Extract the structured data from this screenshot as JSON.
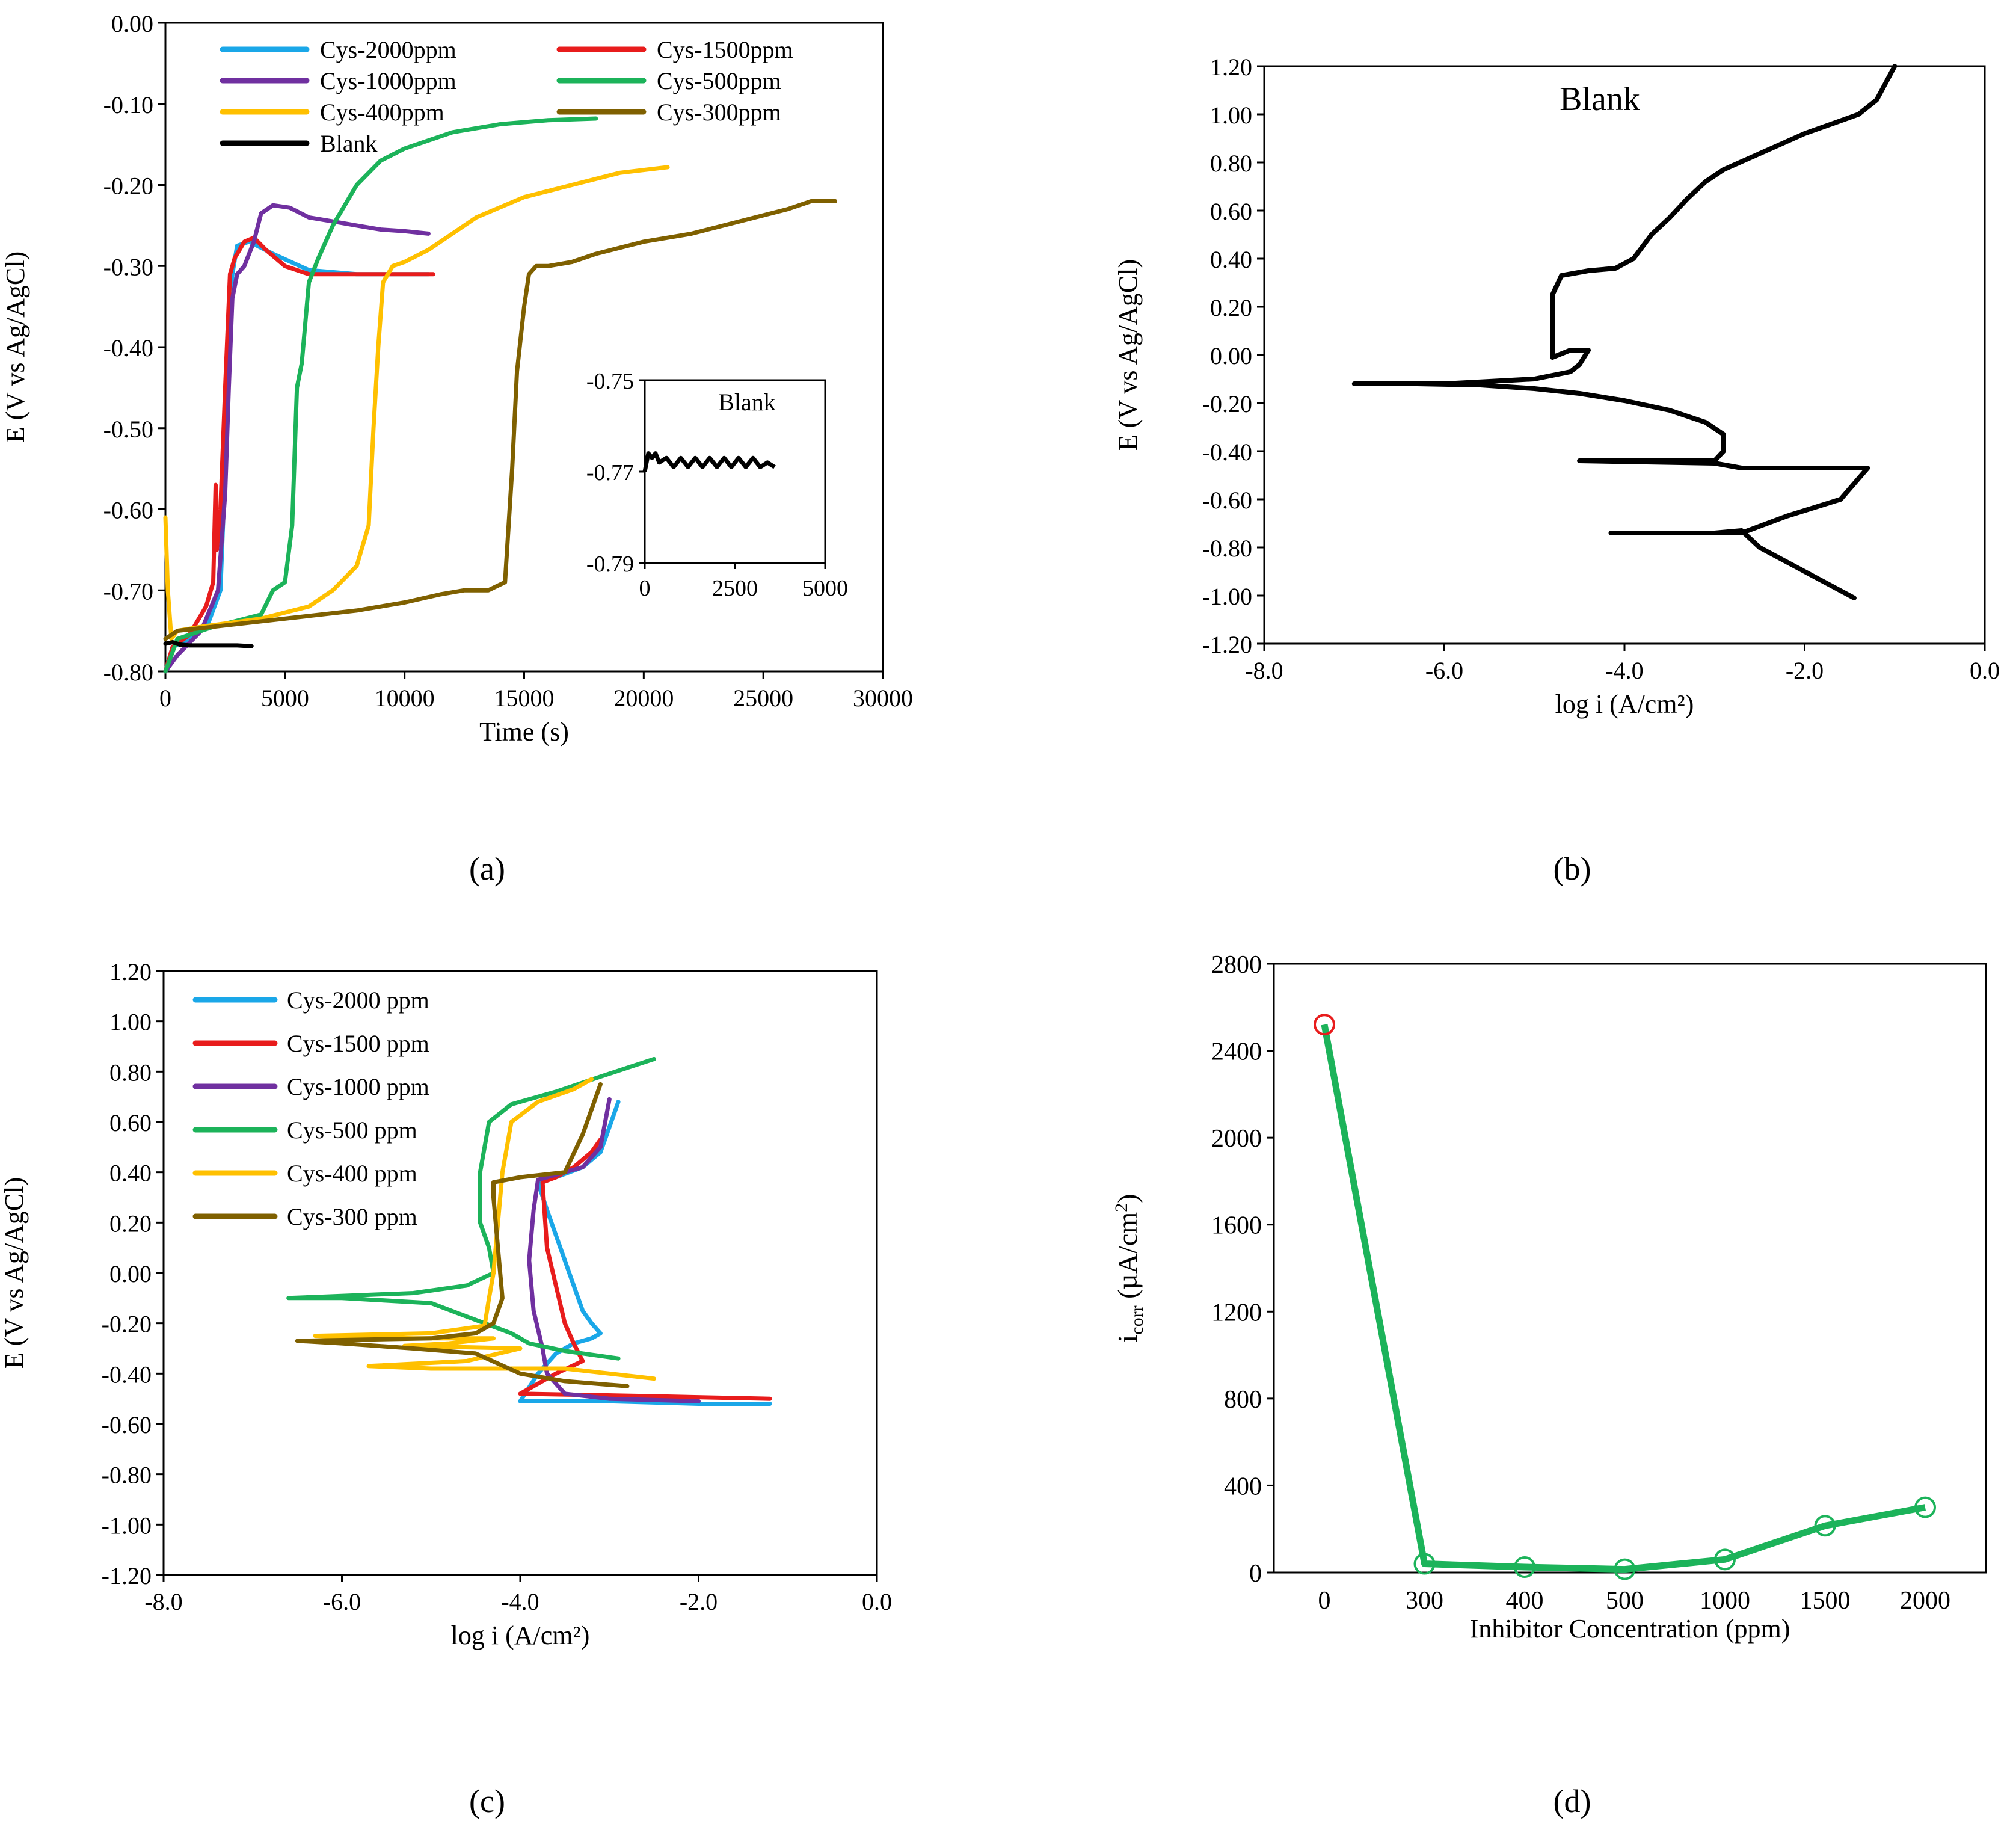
{
  "figure": {
    "panel_labels": [
      "(a)",
      "(b)",
      "(c)",
      "(d)"
    ]
  },
  "chart_data": [
    {
      "id": "a",
      "type": "line",
      "title": "",
      "xlabel": "Time (s)",
      "ylabel": "E (V vs Ag/AgCl)",
      "xlim": [
        0,
        30000
      ],
      "ylim": [
        -0.8,
        0.0
      ],
      "xticks": [
        0,
        5000,
        10000,
        15000,
        20000,
        25000,
        30000
      ],
      "yticks": [
        0.0,
        -0.1,
        -0.2,
        -0.3,
        -0.4,
        -0.5,
        -0.6,
        -0.7,
        -0.8
      ],
      "xtick_labels": [
        "0",
        "5000",
        "10000",
        "15000",
        "20000",
        "25000",
        "30000"
      ],
      "ytick_labels": [
        "0.00",
        "-0.10",
        "-0.20",
        "-0.30",
        "-0.40",
        "-0.50",
        "-0.60",
        "-0.70",
        "-0.80"
      ],
      "legend": "top, two columns",
      "series": [
        {
          "name": "Cys-2000ppm",
          "color": "#1aa7e8",
          "x": [
            0,
            300,
            1000,
            1800,
            2300,
            2500,
            2650,
            2800,
            3000,
            3500,
            4500,
            6000,
            8000,
            10000,
            11000
          ],
          "y": [
            -0.8,
            -0.77,
            -0.76,
            -0.74,
            -0.7,
            -0.55,
            -0.42,
            -0.31,
            -0.275,
            -0.27,
            -0.285,
            -0.305,
            -0.31,
            -0.31,
            -0.31
          ]
        },
        {
          "name": "Cys-1500ppm",
          "color": "#e81c1c",
          "x": [
            0,
            300,
            1000,
            1700,
            2000,
            2100,
            2150,
            2300,
            2500,
            2700,
            2900,
            3300,
            3700,
            4200,
            5000,
            6000,
            8000,
            11200
          ],
          "y": [
            -0.8,
            -0.77,
            -0.755,
            -0.72,
            -0.69,
            -0.57,
            -0.65,
            -0.6,
            -0.45,
            -0.31,
            -0.29,
            -0.27,
            -0.265,
            -0.28,
            -0.3,
            -0.31,
            -0.31,
            -0.31
          ]
        },
        {
          "name": "Cys-1000ppm",
          "color": "#7030a0",
          "x": [
            0,
            500,
            1500,
            2200,
            2500,
            2650,
            2800,
            3000,
            3300,
            3700,
            4000,
            4500,
            5200,
            6000,
            7000,
            8000,
            9000,
            10000,
            11000
          ],
          "y": [
            -0.8,
            -0.78,
            -0.75,
            -0.7,
            -0.58,
            -0.45,
            -0.34,
            -0.31,
            -0.3,
            -0.27,
            -0.235,
            -0.225,
            -0.228,
            -0.24,
            -0.245,
            -0.25,
            -0.255,
            -0.257,
            -0.26
          ]
        },
        {
          "name": "Cys-500ppm",
          "color": "#1cb35a",
          "x": [
            0,
            500,
            2000,
            4000,
            4500,
            5000,
            5300,
            5500,
            5700,
            6000,
            6400,
            7000,
            8000,
            9000,
            10000,
            12000,
            14000,
            16000,
            18000
          ],
          "y": [
            -0.8,
            -0.76,
            -0.745,
            -0.73,
            -0.7,
            -0.69,
            -0.62,
            -0.45,
            -0.42,
            -0.32,
            -0.29,
            -0.25,
            -0.2,
            -0.17,
            -0.155,
            -0.135,
            -0.125,
            -0.12,
            -0.118
          ]
        },
        {
          "name": "Cys-400ppm",
          "color": "#ffc000",
          "x": [
            0,
            100,
            250,
            500,
            1500,
            4000,
            6000,
            7000,
            8000,
            8500,
            8700,
            8900,
            9100,
            9500,
            10000,
            11000,
            12000,
            13000,
            15000,
            17000,
            19000,
            21000
          ],
          "y": [
            -0.61,
            -0.7,
            -0.76,
            -0.75,
            -0.745,
            -0.735,
            -0.72,
            -0.7,
            -0.67,
            -0.62,
            -0.5,
            -0.4,
            -0.32,
            -0.3,
            -0.295,
            -0.28,
            -0.26,
            -0.24,
            -0.215,
            -0.2,
            -0.185,
            -0.178
          ]
        },
        {
          "name": "Cys-300ppm",
          "color": "#7f6000",
          "x": [
            0,
            500,
            2000,
            5000,
            8000,
            10000,
            11500,
            12500,
            13500,
            14200,
            14500,
            14700,
            15000,
            15200,
            15500,
            16000,
            17000,
            18000,
            20000,
            22000,
            24000,
            26000,
            27000,
            28000
          ],
          "y": [
            -0.76,
            -0.75,
            -0.745,
            -0.735,
            -0.725,
            -0.715,
            -0.705,
            -0.7,
            -0.7,
            -0.69,
            -0.55,
            -0.43,
            -0.35,
            -0.31,
            -0.3,
            -0.3,
            -0.295,
            -0.285,
            -0.27,
            -0.26,
            -0.245,
            -0.23,
            -0.22,
            -0.22
          ]
        },
        {
          "name": "Blank",
          "color": "#000000",
          "x": [
            0,
            300,
            600,
            1000,
            1500,
            2000,
            2500,
            3000,
            3600
          ],
          "y": [
            -0.766,
            -0.764,
            -0.767,
            -0.768,
            -0.768,
            -0.768,
            -0.768,
            -0.768,
            -0.769
          ]
        }
      ],
      "inset": {
        "title": "Blank",
        "xlim": [
          0,
          5000
        ],
        "ylim": [
          -0.79,
          -0.75
        ],
        "xticks": [
          0,
          2500,
          5000
        ],
        "yticks": [
          -0.75,
          -0.77,
          -0.79
        ],
        "xtick_labels": [
          "0",
          "2500",
          "5000"
        ],
        "ytick_labels": [
          "-0.75",
          "-0.77",
          "-0.79"
        ],
        "x": [
          0,
          100,
          200,
          300,
          400,
          600,
          800,
          1000,
          1200,
          1400,
          1600,
          1800,
          2000,
          2200,
          2400,
          2600,
          2800,
          3000,
          3200,
          3400,
          3600
        ],
        "y": [
          -0.77,
          -0.766,
          -0.767,
          -0.766,
          -0.768,
          -0.767,
          -0.769,
          -0.767,
          -0.769,
          -0.767,
          -0.769,
          -0.767,
          -0.769,
          -0.767,
          -0.769,
          -0.767,
          -0.769,
          -0.767,
          -0.769,
          -0.768,
          -0.769
        ]
      }
    },
    {
      "id": "b",
      "type": "line",
      "title": "Blank",
      "xlabel": "log i (A/cm²)",
      "ylabel": "E (V vs Ag/AgCl)",
      "xlim": [
        -8.0,
        0.0
      ],
      "ylim": [
        -1.2,
        1.2
      ],
      "xticks": [
        -8.0,
        -6.0,
        -4.0,
        -2.0,
        0.0
      ],
      "yticks": [
        1.2,
        1.0,
        0.8,
        0.6,
        0.4,
        0.2,
        0.0,
        -0.2,
        -0.4,
        -0.6,
        -0.8,
        -1.0,
        -1.2
      ],
      "xtick_labels": [
        "-8.0",
        "-6.0",
        "-4.0",
        "-2.0",
        "0.0"
      ],
      "ytick_labels": [
        "1.20",
        "1.00",
        "0.80",
        "0.60",
        "0.40",
        "0.20",
        "0.00",
        "-0.20",
        "-0.40",
        "-0.60",
        "-0.80",
        "-1.00",
        "-1.20"
      ],
      "series": [
        {
          "name": "Blank",
          "color": "#000000",
          "x": [
            -1.45,
            -2.0,
            -2.5,
            -2.7,
            -3.0,
            -3.5,
            -4.15,
            -3.5,
            -2.7,
            -2.2,
            -1.6,
            -1.3,
            -1.4,
            -2.0,
            -2.7,
            -3.0,
            -4.5,
            -3.0,
            -2.9,
            -2.9,
            -3.1,
            -3.5,
            -4.0,
            -4.5,
            -5.0,
            -5.6,
            -6.3,
            -7.0,
            -6.0,
            -5.5,
            -5.0,
            -4.6,
            -4.5,
            -4.4,
            -4.6,
            -4.8,
            -4.8,
            -4.8,
            -4.7,
            -4.4,
            -4.1,
            -3.9,
            -3.7,
            -3.5,
            -3.3,
            -3.1,
            -2.9,
            -2.6,
            -2.3,
            -2.0,
            -1.7,
            -1.4,
            -1.2,
            -1.1,
            -1.0
          ],
          "y": [
            -1.01,
            -0.9,
            -0.8,
            -0.73,
            -0.74,
            -0.74,
            -0.74,
            -0.74,
            -0.74,
            -0.67,
            -0.6,
            -0.47,
            -0.47,
            -0.47,
            -0.47,
            -0.45,
            -0.44,
            -0.44,
            -0.4,
            -0.33,
            -0.28,
            -0.23,
            -0.19,
            -0.16,
            -0.14,
            -0.125,
            -0.12,
            -0.12,
            -0.12,
            -0.11,
            -0.1,
            -0.07,
            -0.04,
            0.02,
            0.02,
            -0.01,
            0.1,
            0.25,
            0.33,
            0.35,
            0.36,
            0.4,
            0.5,
            0.57,
            0.65,
            0.72,
            0.77,
            0.82,
            0.87,
            0.92,
            0.96,
            1.0,
            1.06,
            1.13,
            1.2
          ]
        }
      ]
    },
    {
      "id": "c",
      "type": "line",
      "title": "",
      "xlabel": "log i (A/cm²)",
      "ylabel": "E (V vs Ag/AgCl)",
      "xlim": [
        -8.0,
        0.0
      ],
      "ylim": [
        -1.2,
        1.2
      ],
      "xticks": [
        -8.0,
        -6.0,
        -4.0,
        -2.0,
        0.0
      ],
      "yticks": [
        1.2,
        1.0,
        0.8,
        0.6,
        0.4,
        0.2,
        0.0,
        -0.2,
        -0.4,
        -0.6,
        -0.8,
        -1.0,
        -1.2
      ],
      "xtick_labels": [
        "-8.0",
        "-6.0",
        "-4.0",
        "-2.0",
        "0.0"
      ],
      "ytick_labels": [
        "1.20",
        "1.00",
        "0.80",
        "0.60",
        "0.40",
        "0.20",
        "0.00",
        "-0.20",
        "-0.40",
        "-0.60",
        "-0.80",
        "-1.00",
        "-1.20"
      ],
      "legend": "top-left",
      "series": [
        {
          "name": "Cys-2000 ppm",
          "color": "#1aa7e8",
          "x": [
            -1.2,
            -2.0,
            -3.0,
            -4.0,
            -3.8,
            -3.6,
            -3.4,
            -3.2,
            -3.1,
            -3.2,
            -3.3,
            -3.4,
            -3.5,
            -3.6,
            -3.7,
            -3.8,
            -3.6,
            -3.3,
            -3.1,
            -3.0,
            -2.9
          ],
          "y": [
            -0.52,
            -0.52,
            -0.51,
            -0.51,
            -0.4,
            -0.32,
            -0.28,
            -0.26,
            -0.24,
            -0.2,
            -0.15,
            -0.05,
            0.05,
            0.15,
            0.25,
            0.36,
            0.38,
            0.42,
            0.48,
            0.58,
            0.68
          ]
        },
        {
          "name": "Cys-1500 ppm",
          "color": "#e81c1c",
          "x": [
            -1.2,
            -2.5,
            -4.0,
            -3.6,
            -3.3,
            -3.4,
            -3.5,
            -3.6,
            -3.7,
            -3.75,
            -3.6,
            -3.4,
            -3.2,
            -3.1
          ],
          "y": [
            -0.5,
            -0.49,
            -0.48,
            -0.4,
            -0.35,
            -0.28,
            -0.2,
            -0.05,
            0.1,
            0.36,
            0.38,
            0.42,
            0.48,
            0.53
          ]
        },
        {
          "name": "Cys-1000 ppm",
          "color": "#7030a0",
          "x": [
            -2.0,
            -3.0,
            -3.5,
            -3.7,
            -3.75,
            -3.85,
            -3.9,
            -3.85,
            -3.8,
            -3.6,
            -3.3,
            -3.1,
            -3.0
          ],
          "y": [
            -0.51,
            -0.5,
            -0.48,
            -0.4,
            -0.3,
            -0.15,
            0.05,
            0.25,
            0.37,
            0.39,
            0.42,
            0.5,
            0.69
          ]
        },
        {
          "name": "Cys-500 ppm",
          "color": "#1cb35a",
          "x": [
            -2.9,
            -3.5,
            -3.9,
            -4.1,
            -4.4,
            -5.0,
            -6.0,
            -6.6,
            -5.2,
            -4.6,
            -4.3,
            -4.35,
            -4.45,
            -4.45,
            -4.35,
            -4.1,
            -3.6,
            -3.1,
            -2.5
          ],
          "y": [
            -0.34,
            -0.31,
            -0.28,
            -0.24,
            -0.2,
            -0.12,
            -0.1,
            -0.1,
            -0.08,
            -0.05,
            0.0,
            0.1,
            0.2,
            0.4,
            0.6,
            0.67,
            0.72,
            0.78,
            0.85
          ]
        },
        {
          "name": "Cys-400 ppm",
          "color": "#ffc000",
          "x": [
            -2.5,
            -3.0,
            -3.5,
            -4.0,
            -5.0,
            -5.7,
            -4.6,
            -4.0,
            -5.3,
            -4.8,
            -4.3,
            -5.2,
            -6.3,
            -5.0,
            -4.4,
            -4.35,
            -4.3,
            -4.25,
            -4.2,
            -4.1,
            -3.8,
            -3.4,
            -3.2
          ],
          "y": [
            -0.42,
            -0.4,
            -0.38,
            -0.38,
            -0.38,
            -0.37,
            -0.35,
            -0.3,
            -0.29,
            -0.28,
            -0.26,
            -0.26,
            -0.25,
            -0.24,
            -0.21,
            -0.1,
            0.0,
            0.2,
            0.4,
            0.6,
            0.68,
            0.73,
            0.77
          ]
        },
        {
          "name": "Cys-300 ppm",
          "color": "#7f6000",
          "x": [
            -2.8,
            -3.5,
            -4.0,
            -4.5,
            -5.2,
            -6.0,
            -6.5,
            -5.0,
            -4.5,
            -4.3,
            -4.2,
            -4.25,
            -4.3,
            -4.3,
            -4.0,
            -3.5,
            -3.3,
            -3.2,
            -3.1
          ],
          "y": [
            -0.45,
            -0.43,
            -0.4,
            -0.32,
            -0.3,
            -0.28,
            -0.27,
            -0.26,
            -0.24,
            -0.2,
            -0.1,
            0.1,
            0.3,
            0.36,
            0.38,
            0.4,
            0.55,
            0.65,
            0.75
          ]
        }
      ]
    },
    {
      "id": "d",
      "type": "line",
      "title": "",
      "xlabel": "Inhibitor Concentration (ppm)",
      "ylabel": "i",
      "ylabel_sub": "corr",
      "ylabel_rest": " (µA/cm",
      "ylabel_sup": "2",
      "ylabel_end": ")",
      "ylim": [
        0,
        2800
      ],
      "yticks": [
        0,
        400,
        800,
        1200,
        1600,
        2000,
        2400,
        2800
      ],
      "ytick_labels": [
        "0",
        "400",
        "800",
        "1200",
        "1600",
        "2000",
        "2400",
        "2800"
      ],
      "categories": [
        "0",
        "300",
        "400",
        "500",
        "1000",
        "1500",
        "2000"
      ],
      "series": [
        {
          "name": "icorr",
          "color": "#1cb35a",
          "values": [
            2520,
            40,
            25,
            15,
            60,
            215,
            300
          ],
          "marker_colors": [
            "#e81c1c",
            "#1cb35a",
            "#1cb35a",
            "#1cb35a",
            "#1cb35a",
            "#1cb35a",
            "#1cb35a"
          ]
        }
      ]
    }
  ]
}
